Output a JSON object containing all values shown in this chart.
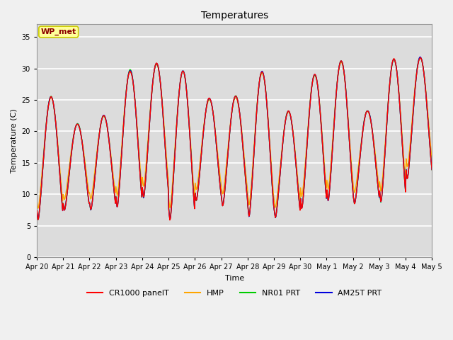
{
  "title": "Temperatures",
  "xlabel": "Time",
  "ylabel": "Temperature (C)",
  "annotation_text": "WP_met",
  "ylim": [
    0,
    37
  ],
  "yticks": [
    0,
    5,
    10,
    15,
    20,
    25,
    30,
    35
  ],
  "plot_bg_color": "#dcdcdc",
  "fig_bg_color": "#f0f0f0",
  "grid_color": "#ffffff",
  "legend_labels": [
    "CR1000 panelT",
    "HMP",
    "NR01 PRT",
    "AM25T PRT"
  ],
  "line_colors": [
    "#ff0000",
    "#ffa500",
    "#00cc00",
    "#0000dd"
  ],
  "x_tick_labels": [
    "Apr 20",
    "Apr 21",
    "Apr 22",
    "Apr 23",
    "Apr 24",
    "Apr 25",
    "Apr 26",
    "Apr 27",
    "Apr 28",
    "Apr 29",
    "Apr 30",
    "May 1",
    "May 2",
    "May 3",
    "May 4",
    "May 5"
  ],
  "n_days": 15,
  "samples_per_day": 48,
  "day_peaks": [
    25.5,
    21.2,
    22.5,
    29.7,
    30.8,
    29.6,
    25.2,
    25.6,
    29.5,
    23.2,
    29.0,
    31.2,
    23.3,
    31.5,
    31.8
  ],
  "day_mins": [
    6.0,
    7.5,
    7.5,
    8.0,
    9.5,
    6.0,
    9.0,
    8.2,
    6.5,
    6.3,
    7.8,
    9.0,
    8.5,
    8.8,
    12.5
  ],
  "title_fontsize": 10,
  "label_fontsize": 8,
  "tick_fontsize": 7,
  "legend_fontsize": 8,
  "line_width": 1.0
}
